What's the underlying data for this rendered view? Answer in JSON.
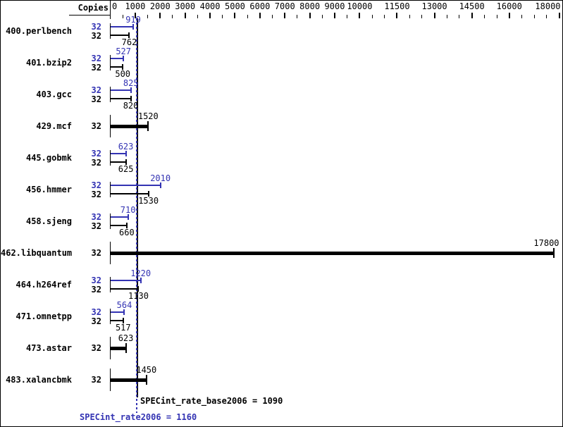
{
  "chart_data": {
    "type": "bar",
    "orientation": "horizontal",
    "copies_header": "Copies",
    "axis": {
      "min": 0,
      "max": 18000,
      "minor_tick_step": 500,
      "labeled_ticks": [
        0,
        1000,
        2000,
        3000,
        4000,
        5000,
        6000,
        7000,
        8000,
        9000,
        10000,
        11500,
        13000,
        14500,
        16000,
        18000
      ]
    },
    "benchmarks": [
      {
        "name": "400.perlbench",
        "bars": [
          {
            "series": "peak",
            "copies": 32,
            "value": 919
          },
          {
            "series": "base",
            "copies": 32,
            "value": 762
          }
        ]
      },
      {
        "name": "401.bzip2",
        "bars": [
          {
            "series": "peak",
            "copies": 32,
            "value": 527
          },
          {
            "series": "base",
            "copies": 32,
            "value": 500
          }
        ]
      },
      {
        "name": "403.gcc",
        "bars": [
          {
            "series": "peak",
            "copies": 32,
            "value": 825
          },
          {
            "series": "base",
            "copies": 32,
            "value": 820
          }
        ]
      },
      {
        "name": "429.mcf",
        "bars": [
          {
            "series": "base_and_peak",
            "copies": 32,
            "value": 1520
          }
        ]
      },
      {
        "name": "445.gobmk",
        "bars": [
          {
            "series": "peak",
            "copies": 32,
            "value": 623
          },
          {
            "series": "base",
            "copies": 32,
            "value": 625
          }
        ]
      },
      {
        "name": "456.hmmer",
        "bars": [
          {
            "series": "peak",
            "copies": 32,
            "value": 2010
          },
          {
            "series": "base",
            "copies": 32,
            "value": 1530
          }
        ]
      },
      {
        "name": "458.sjeng",
        "bars": [
          {
            "series": "peak",
            "copies": 32,
            "value": 710
          },
          {
            "series": "base",
            "copies": 32,
            "value": 660
          }
        ]
      },
      {
        "name": "462.libquantum",
        "bars": [
          {
            "series": "base_and_peak",
            "copies": 32,
            "value": 17800
          }
        ]
      },
      {
        "name": "464.h264ref",
        "bars": [
          {
            "series": "peak",
            "copies": 32,
            "value": 1220
          },
          {
            "series": "base",
            "copies": 32,
            "value": 1130
          }
        ]
      },
      {
        "name": "471.omnetpp",
        "bars": [
          {
            "series": "peak",
            "copies": 32,
            "value": 564
          },
          {
            "series": "base",
            "copies": 32,
            "value": 517
          }
        ]
      },
      {
        "name": "473.astar",
        "bars": [
          {
            "series": "base_and_peak",
            "copies": 32,
            "value": 623
          }
        ]
      },
      {
        "name": "483.xalancbmk",
        "bars": [
          {
            "series": "base_and_peak",
            "copies": 32,
            "value": 1450
          }
        ]
      }
    ],
    "summary": {
      "base_label": "SPECint_rate_base2006",
      "base_value": 1090,
      "peak_label": "SPECint_rate2006",
      "peak_value": 1160
    },
    "colors": {
      "peak_accent": "#3333b3",
      "base": "#000000",
      "background": "#ffffff"
    }
  }
}
